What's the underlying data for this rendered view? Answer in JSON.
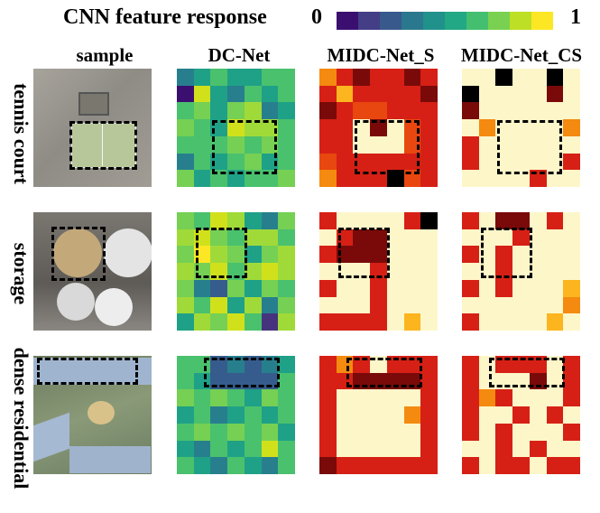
{
  "figure": {
    "title": "CNN feature response",
    "colorbar_min": "0",
    "colorbar_max": "1",
    "colorbar_colors": [
      "#3b0f70",
      "#433e85",
      "#38598c",
      "#2a788e",
      "#21918c",
      "#22a884",
      "#44bf70",
      "#7ad151",
      "#bddf26",
      "#fde725"
    ],
    "columns": [
      "sample",
      "DC-Net",
      "MIDC-Net_S",
      "MIDC-Net_CS"
    ],
    "rows": [
      "tennis court",
      "storage",
      "dense residential"
    ]
  }
}
